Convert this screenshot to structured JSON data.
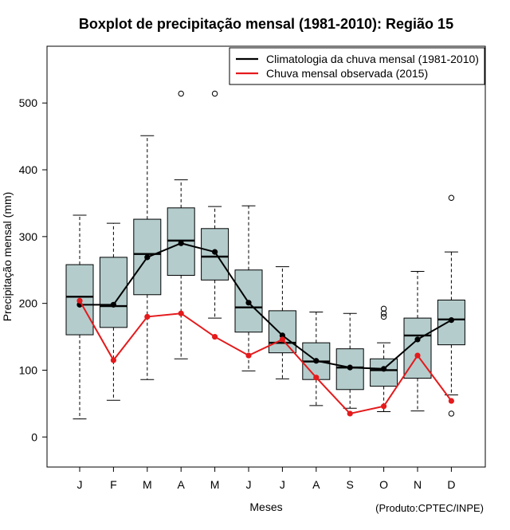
{
  "chart_data": {
    "type": "boxplot",
    "title": "Boxplot de precipitação mensal (1981-2010): Região 15",
    "xlabel": "Meses",
    "ylabel": "Precipitação mensal (mm)",
    "credit": "(Produto:CPTEC/INPE)",
    "ylim": [
      -45,
      585
    ],
    "yticks": [
      0,
      100,
      200,
      300,
      400,
      500
    ],
    "categories": [
      "J",
      "F",
      "M",
      "A",
      "M",
      "J",
      "J",
      "A",
      "S",
      "O",
      "N",
      "D"
    ],
    "boxes": [
      {
        "whisker_low": 27,
        "q1": 153,
        "median": 210,
        "q3": 258,
        "whisker_high": 332,
        "outliers": []
      },
      {
        "whisker_low": 55,
        "q1": 164,
        "median": 196,
        "q3": 269,
        "whisker_high": 320,
        "outliers": []
      },
      {
        "whisker_low": 86,
        "q1": 213,
        "median": 274,
        "q3": 326,
        "whisker_high": 451,
        "outliers": []
      },
      {
        "whisker_low": 117,
        "q1": 242,
        "median": 294,
        "q3": 343,
        "whisker_high": 385,
        "outliers": [
          514
        ]
      },
      {
        "whisker_low": 178,
        "q1": 235,
        "median": 270,
        "q3": 312,
        "whisker_high": 345,
        "outliers": [
          514
        ]
      },
      {
        "whisker_low": 99,
        "q1": 157,
        "median": 194,
        "q3": 250,
        "whisker_high": 346,
        "outliers": []
      },
      {
        "whisker_low": 87,
        "q1": 126,
        "median": 141,
        "q3": 189,
        "whisker_high": 255,
        "outliers": []
      },
      {
        "whisker_low": 47,
        "q1": 86,
        "median": 113,
        "q3": 141,
        "whisker_high": 187,
        "outliers": []
      },
      {
        "whisker_low": 43,
        "q1": 71,
        "median": 104,
        "q3": 132,
        "whisker_high": 185,
        "outliers": []
      },
      {
        "whisker_low": 38,
        "q1": 76,
        "median": 100,
        "q3": 117,
        "whisker_high": 141,
        "outliers": [
          180,
          185,
          192
        ]
      },
      {
        "whisker_low": 39,
        "q1": 88,
        "median": 152,
        "q3": 178,
        "whisker_high": 248,
        "outliers": []
      },
      {
        "whisker_low": 63,
        "q1": 138,
        "median": 176,
        "q3": 205,
        "whisker_high": 277,
        "outliers": [
          35,
          358
        ]
      }
    ],
    "series": [
      {
        "name": "Climatologia da chuva mensal (1981-2010)",
        "color": "#000000",
        "values": [
          198,
          198,
          269,
          290,
          277,
          201,
          152,
          114,
          104,
          102,
          146,
          175
        ]
      },
      {
        "name": "Chuva mensal observada (2015)",
        "color": "#e41a1c",
        "values": [
          204,
          115,
          180,
          185,
          150,
          122,
          146,
          89,
          35,
          46,
          122,
          54
        ]
      }
    ],
    "box_fill": "#b4cccc",
    "legend_position": "top-right"
  }
}
